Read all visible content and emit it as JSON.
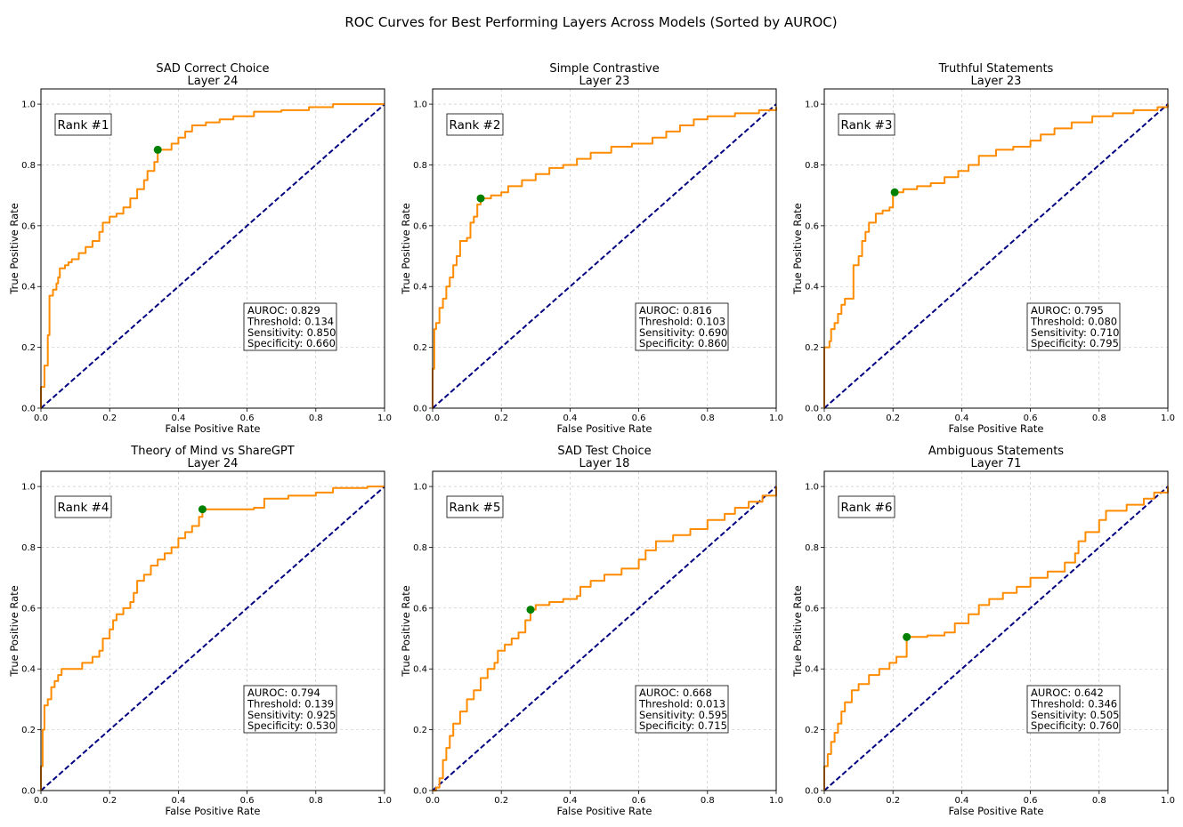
{
  "suptitle": "ROC Curves for Best Performing Layers Across Models (Sorted by AUROC)",
  "colors": {
    "roc": "#ff8c00",
    "diagonal": "#000080",
    "point": "#008000",
    "grid": "#b0b0b0"
  },
  "chart_data": [
    {
      "type": "line",
      "title": "SAD Correct Choice",
      "subtitle": "Layer 24",
      "xlabel": "False Positive Rate",
      "ylabel": "True Positive Rate",
      "xlim": [
        0,
        1
      ],
      "ylim": [
        0,
        1.05
      ],
      "xticks": [
        "0.0",
        "0.2",
        "0.4",
        "0.6",
        "0.8",
        "1.0"
      ],
      "yticks": [
        "0.0",
        "0.2",
        "0.4",
        "0.6",
        "0.8",
        "1.0"
      ],
      "rank": "Rank #1",
      "stats": [
        "AUROC: 0.829",
        "Threshold: 0.134",
        "Sensitivity: 0.850",
        "Specificity: 0.660"
      ],
      "optimal_point": [
        0.34,
        0.85
      ],
      "roc_points": [
        [
          0,
          0
        ],
        [
          0,
          0.07
        ],
        [
          0.01,
          0.09
        ],
        [
          0.01,
          0.14
        ],
        [
          0.02,
          0.14
        ],
        [
          0.02,
          0.24
        ],
        [
          0.025,
          0.37
        ],
        [
          0.035,
          0.39
        ],
        [
          0.045,
          0.41
        ],
        [
          0.05,
          0.43
        ],
        [
          0.055,
          0.46
        ],
        [
          0.07,
          0.47
        ],
        [
          0.08,
          0.48
        ],
        [
          0.09,
          0.49
        ],
        [
          0.11,
          0.51
        ],
        [
          0.13,
          0.53
        ],
        [
          0.15,
          0.55
        ],
        [
          0.17,
          0.58
        ],
        [
          0.18,
          0.61
        ],
        [
          0.2,
          0.63
        ],
        [
          0.22,
          0.64
        ],
        [
          0.24,
          0.66
        ],
        [
          0.26,
          0.69
        ],
        [
          0.28,
          0.72
        ],
        [
          0.3,
          0.75
        ],
        [
          0.31,
          0.78
        ],
        [
          0.33,
          0.81
        ],
        [
          0.34,
          0.85
        ],
        [
          0.36,
          0.85
        ],
        [
          0.38,
          0.87
        ],
        [
          0.4,
          0.89
        ],
        [
          0.42,
          0.91
        ],
        [
          0.44,
          0.93
        ],
        [
          0.48,
          0.94
        ],
        [
          0.52,
          0.95
        ],
        [
          0.56,
          0.96
        ],
        [
          0.62,
          0.975
        ],
        [
          0.7,
          0.98
        ],
        [
          0.78,
          0.99
        ],
        [
          0.85,
          1.0
        ],
        [
          1.0,
          1.0
        ]
      ]
    },
    {
      "type": "line",
      "title": "Simple Contrastive",
      "subtitle": "Layer 23",
      "xlabel": "False Positive Rate",
      "ylabel": "True Positive Rate",
      "xlim": [
        0,
        1
      ],
      "ylim": [
        0,
        1.05
      ],
      "xticks": [
        "0.0",
        "0.2",
        "0.4",
        "0.6",
        "0.8",
        "1.0"
      ],
      "yticks": [
        "0.0",
        "0.2",
        "0.4",
        "0.6",
        "0.8",
        "1.0"
      ],
      "rank": "Rank #2",
      "stats": [
        "AUROC: 0.816",
        "Threshold: 0.103",
        "Sensitivity: 0.690",
        "Specificity: 0.860"
      ],
      "optimal_point": [
        0.14,
        0.69
      ],
      "roc_points": [
        [
          0,
          0
        ],
        [
          0,
          0.13
        ],
        [
          0.005,
          0.26
        ],
        [
          0.01,
          0.28
        ],
        [
          0.02,
          0.33
        ],
        [
          0.03,
          0.36
        ],
        [
          0.04,
          0.4
        ],
        [
          0.05,
          0.43
        ],
        [
          0.06,
          0.47
        ],
        [
          0.07,
          0.5
        ],
        [
          0.08,
          0.55
        ],
        [
          0.1,
          0.56
        ],
        [
          0.11,
          0.61
        ],
        [
          0.12,
          0.63
        ],
        [
          0.13,
          0.67
        ],
        [
          0.14,
          0.69
        ],
        [
          0.17,
          0.7
        ],
        [
          0.2,
          0.71
        ],
        [
          0.22,
          0.73
        ],
        [
          0.26,
          0.75
        ],
        [
          0.3,
          0.77
        ],
        [
          0.34,
          0.79
        ],
        [
          0.38,
          0.8
        ],
        [
          0.42,
          0.82
        ],
        [
          0.46,
          0.84
        ],
        [
          0.52,
          0.86
        ],
        [
          0.58,
          0.87
        ],
        [
          0.64,
          0.89
        ],
        [
          0.68,
          0.91
        ],
        [
          0.72,
          0.93
        ],
        [
          0.76,
          0.95
        ],
        [
          0.8,
          0.96
        ],
        [
          0.88,
          0.97
        ],
        [
          0.95,
          0.98
        ],
        [
          1.0,
          0.99
        ]
      ]
    },
    {
      "type": "line",
      "title": "Truthful Statements",
      "subtitle": "Layer 23",
      "xlabel": "False Positive Rate",
      "ylabel": "True Positive Rate",
      "xlim": [
        0,
        1
      ],
      "ylim": [
        0,
        1.05
      ],
      "xticks": [
        "0.0",
        "0.2",
        "0.4",
        "0.6",
        "0.8",
        "1.0"
      ],
      "yticks": [
        "0.0",
        "0.2",
        "0.4",
        "0.6",
        "0.8",
        "1.0"
      ],
      "rank": "Rank #3",
      "stats": [
        "AUROC: 0.795",
        "Threshold: 0.080",
        "Sensitivity: 0.710",
        "Specificity: 0.795"
      ],
      "optimal_point": [
        0.205,
        0.71
      ],
      "roc_points": [
        [
          0,
          0
        ],
        [
          0,
          0.2
        ],
        [
          0.015,
          0.22
        ],
        [
          0.02,
          0.26
        ],
        [
          0.03,
          0.28
        ],
        [
          0.04,
          0.31
        ],
        [
          0.05,
          0.34
        ],
        [
          0.06,
          0.36
        ],
        [
          0.08,
          0.36
        ],
        [
          0.085,
          0.47
        ],
        [
          0.1,
          0.5
        ],
        [
          0.11,
          0.55
        ],
        [
          0.12,
          0.58
        ],
        [
          0.13,
          0.61
        ],
        [
          0.15,
          0.64
        ],
        [
          0.17,
          0.65
        ],
        [
          0.19,
          0.66
        ],
        [
          0.2,
          0.71
        ],
        [
          0.23,
          0.72
        ],
        [
          0.27,
          0.73
        ],
        [
          0.31,
          0.74
        ],
        [
          0.35,
          0.76
        ],
        [
          0.39,
          0.78
        ],
        [
          0.42,
          0.8
        ],
        [
          0.45,
          0.83
        ],
        [
          0.5,
          0.85
        ],
        [
          0.55,
          0.86
        ],
        [
          0.6,
          0.88
        ],
        [
          0.63,
          0.9
        ],
        [
          0.67,
          0.92
        ],
        [
          0.72,
          0.94
        ],
        [
          0.78,
          0.96
        ],
        [
          0.84,
          0.97
        ],
        [
          0.9,
          0.98
        ],
        [
          0.97,
          0.99
        ],
        [
          1.0,
          1.0
        ]
      ]
    },
    {
      "type": "line",
      "title": "Theory of Mind vs ShareGPT",
      "subtitle": "Layer 24",
      "xlabel": "False Positive Rate",
      "ylabel": "True Positive Rate",
      "xlim": [
        0,
        1
      ],
      "ylim": [
        0,
        1.05
      ],
      "xticks": [
        "0.0",
        "0.2",
        "0.4",
        "0.6",
        "0.8",
        "1.0"
      ],
      "yticks": [
        "0.0",
        "0.2",
        "0.4",
        "0.6",
        "0.8",
        "1.0"
      ],
      "rank": "Rank #4",
      "stats": [
        "AUROC: 0.794",
        "Threshold: 0.139",
        "Sensitivity: 0.925",
        "Specificity: 0.530"
      ],
      "optimal_point": [
        0.47,
        0.925
      ],
      "roc_points": [
        [
          0,
          0
        ],
        [
          0,
          0.08
        ],
        [
          0.005,
          0.2
        ],
        [
          0.01,
          0.28
        ],
        [
          0.02,
          0.3
        ],
        [
          0.03,
          0.34
        ],
        [
          0.04,
          0.36
        ],
        [
          0.05,
          0.38
        ],
        [
          0.06,
          0.4
        ],
        [
          0.1,
          0.4
        ],
        [
          0.12,
          0.42
        ],
        [
          0.15,
          0.44
        ],
        [
          0.17,
          0.46
        ],
        [
          0.18,
          0.5
        ],
        [
          0.2,
          0.53
        ],
        [
          0.21,
          0.56
        ],
        [
          0.22,
          0.58
        ],
        [
          0.24,
          0.6
        ],
        [
          0.26,
          0.62
        ],
        [
          0.27,
          0.65
        ],
        [
          0.28,
          0.69
        ],
        [
          0.3,
          0.71
        ],
        [
          0.32,
          0.74
        ],
        [
          0.34,
          0.76
        ],
        [
          0.36,
          0.78
        ],
        [
          0.38,
          0.8
        ],
        [
          0.4,
          0.83
        ],
        [
          0.42,
          0.85
        ],
        [
          0.44,
          0.87
        ],
        [
          0.46,
          0.9
        ],
        [
          0.47,
          0.925
        ],
        [
          0.52,
          0.925
        ],
        [
          0.62,
          0.93
        ],
        [
          0.65,
          0.96
        ],
        [
          0.72,
          0.97
        ],
        [
          0.8,
          0.98
        ],
        [
          0.85,
          0.995
        ],
        [
          0.95,
          1.0
        ],
        [
          1.0,
          1.0
        ]
      ]
    },
    {
      "type": "line",
      "title": "SAD Test Choice",
      "subtitle": "Layer 18",
      "xlabel": "False Positive Rate",
      "ylabel": "True Positive Rate",
      "xlim": [
        0,
        1
      ],
      "ylim": [
        0,
        1.05
      ],
      "xticks": [
        "0.0",
        "0.2",
        "0.4",
        "0.6",
        "0.8",
        "1.0"
      ],
      "yticks": [
        "0.0",
        "0.2",
        "0.4",
        "0.6",
        "0.8",
        "1.0"
      ],
      "rank": "Rank #5",
      "stats": [
        "AUROC: 0.668",
        "Threshold: 0.013",
        "Sensitivity: 0.595",
        "Specificity: 0.715"
      ],
      "optimal_point": [
        0.285,
        0.595
      ],
      "roc_points": [
        [
          0,
          0
        ],
        [
          0.01,
          0.01
        ],
        [
          0.02,
          0.04
        ],
        [
          0.03,
          0.1
        ],
        [
          0.04,
          0.14
        ],
        [
          0.05,
          0.18
        ],
        [
          0.06,
          0.22
        ],
        [
          0.08,
          0.26
        ],
        [
          0.1,
          0.3
        ],
        [
          0.12,
          0.33
        ],
        [
          0.14,
          0.37
        ],
        [
          0.16,
          0.4
        ],
        [
          0.18,
          0.42
        ],
        [
          0.19,
          0.46
        ],
        [
          0.21,
          0.48
        ],
        [
          0.23,
          0.5
        ],
        [
          0.25,
          0.52
        ],
        [
          0.27,
          0.56
        ],
        [
          0.285,
          0.595
        ],
        [
          0.3,
          0.61
        ],
        [
          0.34,
          0.62
        ],
        [
          0.38,
          0.63
        ],
        [
          0.42,
          0.64
        ],
        [
          0.43,
          0.67
        ],
        [
          0.46,
          0.69
        ],
        [
          0.5,
          0.71
        ],
        [
          0.55,
          0.73
        ],
        [
          0.6,
          0.76
        ],
        [
          0.62,
          0.79
        ],
        [
          0.65,
          0.82
        ],
        [
          0.7,
          0.84
        ],
        [
          0.75,
          0.86
        ],
        [
          0.8,
          0.89
        ],
        [
          0.85,
          0.91
        ],
        [
          0.88,
          0.93
        ],
        [
          0.92,
          0.95
        ],
        [
          0.96,
          0.97
        ],
        [
          1.0,
          1.0
        ]
      ]
    },
    {
      "type": "line",
      "title": "Ambiguous Statements",
      "subtitle": "Layer 71",
      "xlabel": "False Positive Rate",
      "ylabel": "True Positive Rate",
      "xlim": [
        0,
        1
      ],
      "ylim": [
        0,
        1.05
      ],
      "xticks": [
        "0.0",
        "0.2",
        "0.4",
        "0.6",
        "0.8",
        "1.0"
      ],
      "yticks": [
        "0.0",
        "0.2",
        "0.4",
        "0.6",
        "0.8",
        "1.0"
      ],
      "rank": "Rank #6",
      "stats": [
        "AUROC: 0.642",
        "Threshold: 0.346",
        "Sensitivity: 0.505",
        "Specificity: 0.760"
      ],
      "optimal_point": [
        0.24,
        0.505
      ],
      "roc_points": [
        [
          0,
          0
        ],
        [
          0,
          0.08
        ],
        [
          0.01,
          0.12
        ],
        [
          0.02,
          0.16
        ],
        [
          0.03,
          0.19
        ],
        [
          0.04,
          0.22
        ],
        [
          0.05,
          0.26
        ],
        [
          0.06,
          0.29
        ],
        [
          0.08,
          0.33
        ],
        [
          0.1,
          0.35
        ],
        [
          0.13,
          0.38
        ],
        [
          0.16,
          0.4
        ],
        [
          0.19,
          0.42
        ],
        [
          0.21,
          0.44
        ],
        [
          0.24,
          0.47
        ],
        [
          0.24,
          0.505
        ],
        [
          0.3,
          0.51
        ],
        [
          0.35,
          0.52
        ],
        [
          0.38,
          0.55
        ],
        [
          0.42,
          0.58
        ],
        [
          0.45,
          0.61
        ],
        [
          0.48,
          0.63
        ],
        [
          0.52,
          0.65
        ],
        [
          0.56,
          0.67
        ],
        [
          0.6,
          0.7
        ],
        [
          0.65,
          0.72
        ],
        [
          0.7,
          0.75
        ],
        [
          0.73,
          0.78
        ],
        [
          0.74,
          0.82
        ],
        [
          0.76,
          0.85
        ],
        [
          0.8,
          0.89
        ],
        [
          0.82,
          0.92
        ],
        [
          0.88,
          0.94
        ],
        [
          0.93,
          0.96
        ],
        [
          0.96,
          0.98
        ],
        [
          1.0,
          1.0
        ]
      ]
    }
  ]
}
